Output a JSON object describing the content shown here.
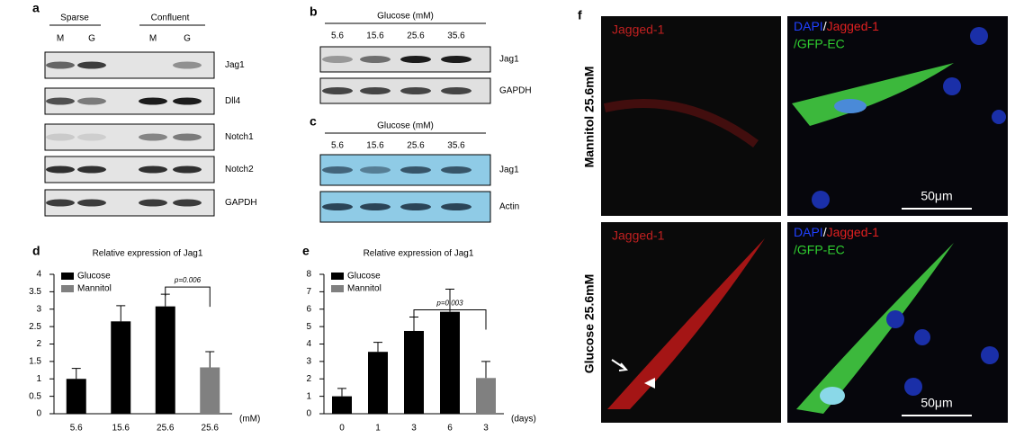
{
  "panels": {
    "a": {
      "label": "a",
      "groups": [
        "Sparse",
        "Confluent"
      ],
      "lanes": [
        "M",
        "G",
        "M",
        "G"
      ],
      "rows": [
        "Jag1",
        "Dll4",
        "Notch1",
        "Notch2",
        "GAPDH"
      ]
    },
    "b": {
      "label": "b",
      "title": "Glucose (mM)",
      "lanes": [
        "5.6",
        "15.6",
        "25.6",
        "35.6"
      ],
      "rows": [
        "Jag1",
        "GAPDH"
      ]
    },
    "c": {
      "label": "c",
      "title": "Glucose (mM)",
      "lanes": [
        "5.6",
        "15.6",
        "25.6",
        "35.6"
      ],
      "rows": [
        "Jag1",
        "Actin"
      ]
    },
    "f": {
      "label": "f",
      "rows": [
        "Mannitol 25.6mM",
        "Glucose 25.6mM"
      ],
      "red_channel": "Jagged-1",
      "merge": [
        "DAPI",
        "/",
        "Jagged-1",
        "/GFP-EC"
      ],
      "scale": "50μm"
    }
  },
  "chart_data": [
    {
      "type": "bar",
      "label": "d",
      "title": "Relative expression of Jag1",
      "x_label": "(mM)",
      "categories": [
        "5.6",
        "15.6",
        "25.6",
        "25.6"
      ],
      "series": [
        {
          "name": "Glucose",
          "color": "#000000",
          "values": [
            1.0,
            2.65,
            3.08,
            null
          ],
          "errors": [
            0.3,
            0.45,
            0.35,
            null
          ]
        },
        {
          "name": "Mannitol",
          "color": "#808080",
          "values": [
            null,
            null,
            null,
            1.33
          ],
          "errors": [
            null,
            null,
            null,
            0.45
          ]
        }
      ],
      "annotation": "p=0.006",
      "ylim": [
        0,
        4
      ],
      "yticks": [
        0,
        0.5,
        1,
        1.5,
        2,
        2.5,
        3,
        3.5,
        4
      ]
    },
    {
      "type": "bar",
      "label": "e",
      "title": "Relative expression of Jag1",
      "x_label": "(days)",
      "categories": [
        "0",
        "1",
        "3",
        "6",
        "3"
      ],
      "series": [
        {
          "name": "Glucose",
          "color": "#000000",
          "values": [
            1.0,
            3.55,
            4.75,
            5.85,
            null
          ],
          "errors": [
            0.45,
            0.55,
            0.8,
            1.3,
            null
          ]
        },
        {
          "name": "Mannitol",
          "color": "#808080",
          "values": [
            null,
            null,
            null,
            null,
            2.05
          ],
          "errors": [
            null,
            null,
            null,
            null,
            0.95
          ]
        }
      ],
      "annotation": "p=0.003",
      "ylim": [
        0,
        8
      ],
      "yticks": [
        0,
        1,
        2,
        3,
        4,
        5,
        6,
        7,
        8
      ]
    }
  ]
}
